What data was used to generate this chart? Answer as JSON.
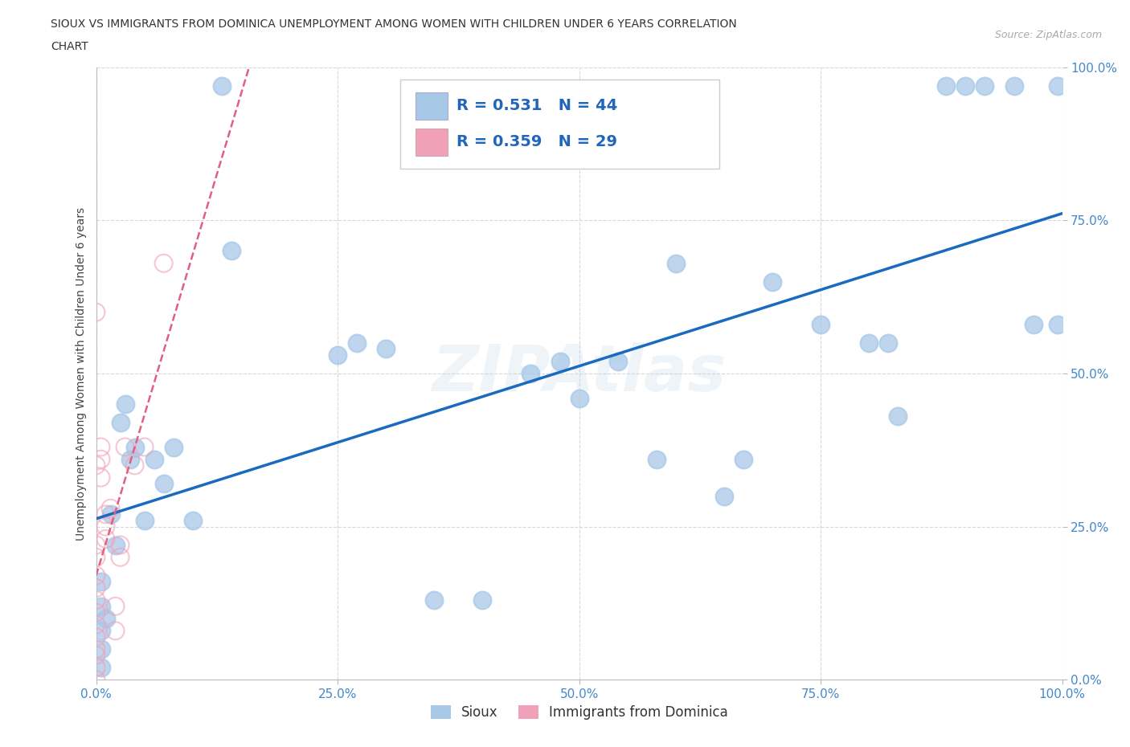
{
  "title_line1": "SIOUX VS IMMIGRANTS FROM DOMINICA UNEMPLOYMENT AMONG WOMEN WITH CHILDREN UNDER 6 YEARS CORRELATION",
  "title_line2": "CHART",
  "source_text": "Source: ZipAtlas.com",
  "ylabel": "Unemployment Among Women with Children Under 6 years",
  "xmin": 0.0,
  "xmax": 1.0,
  "ymin": 0.0,
  "ymax": 1.0,
  "xtick_labels": [
    "0.0%",
    "25.0%",
    "50.0%",
    "75.0%",
    "100.0%"
  ],
  "xtick_vals": [
    0.0,
    0.25,
    0.5,
    0.75,
    1.0
  ],
  "ytick_labels": [
    "0.0%",
    "25.0%",
    "50.0%",
    "75.0%",
    "100.0%"
  ],
  "ytick_vals": [
    0.0,
    0.25,
    0.5,
    0.75,
    1.0
  ],
  "sioux_color": "#a8c8e8",
  "dominica_color": "#f0a0b8",
  "trend_sioux_color": "#1a6abf",
  "trend_dominica_color": "#e06080",
  "legend_R_sioux": "0.531",
  "legend_N_sioux": "44",
  "legend_R_dominica": "0.359",
  "legend_N_dominica": "29",
  "legend_label_sioux": "Sioux",
  "legend_label_dominica": "Immigrants from Dominica",
  "watermark": "ZIPAtlas",
  "sioux_x": [
    0.005,
    0.005,
    0.005,
    0.005,
    0.005,
    0.01,
    0.015,
    0.02,
    0.025,
    0.03,
    0.035,
    0.04,
    0.05,
    0.06,
    0.07,
    0.08,
    0.1,
    0.13,
    0.14,
    0.25,
    0.27,
    0.3,
    0.35,
    0.4,
    0.45,
    0.48,
    0.5,
    0.54,
    0.58,
    0.6,
    0.65,
    0.67,
    0.7,
    0.75,
    0.8,
    0.82,
    0.83,
    0.88,
    0.9,
    0.92,
    0.95,
    0.97,
    0.995,
    0.995
  ],
  "sioux_y": [
    0.02,
    0.05,
    0.08,
    0.12,
    0.16,
    0.1,
    0.27,
    0.22,
    0.42,
    0.45,
    0.36,
    0.38,
    0.26,
    0.36,
    0.32,
    0.38,
    0.26,
    0.97,
    0.7,
    0.53,
    0.55,
    0.54,
    0.13,
    0.13,
    0.5,
    0.52,
    0.46,
    0.52,
    0.36,
    0.68,
    0.3,
    0.36,
    0.65,
    0.58,
    0.55,
    0.55,
    0.43,
    0.97,
    0.97,
    0.97,
    0.97,
    0.58,
    0.97,
    0.58
  ],
  "dominica_x": [
    0.0,
    0.0,
    0.0,
    0.0,
    0.0,
    0.0,
    0.0,
    0.0,
    0.0,
    0.0,
    0.0,
    0.0,
    0.0,
    0.0,
    0.005,
    0.005,
    0.005,
    0.01,
    0.01,
    0.01,
    0.015,
    0.02,
    0.02,
    0.025,
    0.025,
    0.03,
    0.04,
    0.05,
    0.07
  ],
  "dominica_y": [
    0.0,
    0.02,
    0.04,
    0.05,
    0.07,
    0.09,
    0.11,
    0.13,
    0.15,
    0.17,
    0.2,
    0.22,
    0.35,
    0.6,
    0.33,
    0.36,
    0.38,
    0.23,
    0.25,
    0.27,
    0.28,
    0.08,
    0.12,
    0.2,
    0.22,
    0.38,
    0.35,
    0.38,
    0.68
  ],
  "background_color": "#ffffff",
  "grid_color": "#d8d8d8"
}
